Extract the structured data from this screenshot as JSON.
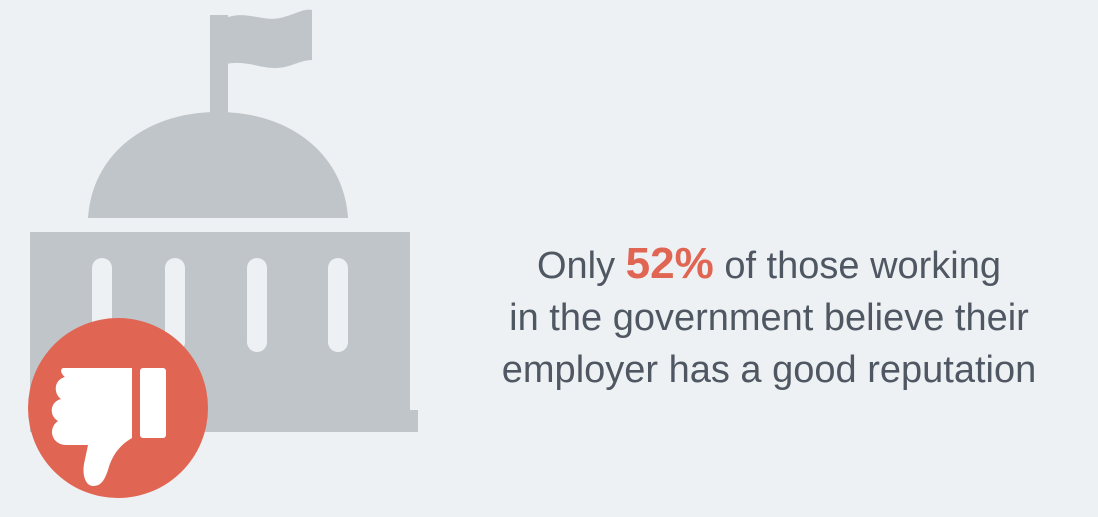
{
  "colors": {
    "background": "#eef1f4",
    "icon_gray": "#bfc5c9",
    "accent": "#e06552",
    "text": "#4f5862"
  },
  "icons": {
    "building": "government-building-icon",
    "flag": "flag-icon",
    "badge": "thumbs-down-icon"
  },
  "statement": {
    "prefix": "Only",
    "stat": "52%",
    "line1_suffix": "of those working",
    "line2": "in the government believe their",
    "line3": "employer has a good reputation"
  }
}
